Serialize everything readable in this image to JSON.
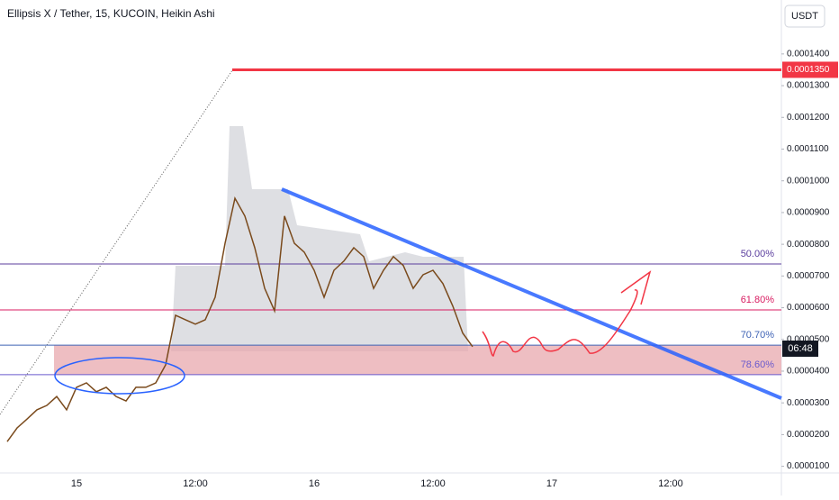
{
  "chart_data": {
    "type": "line",
    "title": "Ellipsis X / Tether, 15, KUCOIN, Heikin Ashi",
    "currency": "USDT",
    "countdown": "06:48",
    "categories": [
      null,
      null,
      null,
      null,
      null,
      null,
      null,
      "15",
      null,
      null,
      null,
      null,
      null,
      null,
      null,
      null,
      null,
      null,
      null,
      "12:00",
      null,
      null,
      null,
      null,
      null,
      null,
      null,
      null,
      null,
      null,
      null,
      "16",
      null,
      null,
      null,
      null,
      null,
      null,
      null,
      null,
      null,
      null,
      null,
      "12:00",
      null,
      null,
      null,
      null,
      null,
      null,
      null,
      null,
      null,
      null,
      null,
      "17",
      null,
      null,
      null,
      null,
      null,
      null,
      null,
      null,
      null,
      null,
      null,
      "12:00",
      null,
      null,
      null,
      null,
      null,
      null,
      null,
      null,
      null,
      null,
      null
    ],
    "series": [
      {
        "color": "#7a4a1c",
        "values": [
          1.78e-05,
          2.21e-05,
          2.49e-05,
          2.78e-05,
          2.92e-05,
          3.2e-05,
          2.78e-05,
          3.49e-05,
          3.63e-05,
          3.35e-05,
          3.49e-05,
          3.2e-05,
          3.06e-05,
          3.49e-05,
          3.49e-05,
          3.63e-05,
          4.2e-05,
          5.76e-05,
          5.62e-05,
          5.48e-05,
          5.62e-05,
          6.33e-05,
          8.03e-05,
          9.45e-05,
          8.89e-05,
          7.89e-05,
          6.61e-05,
          5.9e-05,
          8.89e-05,
          8.03e-05,
          7.75e-05,
          7.18e-05,
          6.33e-05,
          7.18e-05,
          7.47e-05,
          7.89e-05,
          7.61e-05,
          6.61e-05,
          7.18e-05,
          7.61e-05,
          7.33e-05,
          6.61e-05,
          7.04e-05,
          7.18e-05,
          6.76e-05,
          6.05e-05,
          5.2e-05,
          4.77e-05,
          null,
          null,
          null,
          null,
          null,
          null,
          null,
          null,
          null,
          null,
          null,
          null,
          null,
          null,
          null,
          null,
          null,
          null,
          null,
          null,
          null,
          null,
          null,
          null,
          null,
          null,
          null,
          null,
          null,
          null,
          null
        ]
      }
    ],
    "ylim": [
      7.9e-06,
      0.000157
    ],
    "yticks": [
      {
        "value": 0.00014,
        "label": "0.0001400"
      },
      {
        "value": 0.00013,
        "label": "0.0001300"
      },
      {
        "value": 0.00012,
        "label": "0.0001200"
      },
      {
        "value": 0.00011,
        "label": "0.0001100"
      },
      {
        "value": 0.0001,
        "label": "0.0001000"
      },
      {
        "value": 9e-05,
        "label": "0.0000900"
      },
      {
        "value": 8e-05,
        "label": "0.0000800"
      },
      {
        "value": 7e-05,
        "label": "0.0000700"
      },
      {
        "value": 6e-05,
        "label": "0.0000600"
      },
      {
        "value": 5e-05,
        "label": "0.0000500"
      },
      {
        "value": 4e-05,
        "label": "0.0000400"
      },
      {
        "value": 3e-05,
        "label": "0.0000300"
      },
      {
        "value": 2e-05,
        "label": "0.0000200"
      },
      {
        "value": 1e-05,
        "label": "0.0000100"
      }
    ],
    "levels": [
      {
        "value": 0.000135,
        "label": "0.0001350",
        "color": "#f23645"
      },
      {
        "value": 7.38e-05,
        "label": "50.00%",
        "color": "#5b3e9e"
      },
      {
        "value": 5.93e-05,
        "label": "61.80%",
        "color": "#d81b60"
      },
      {
        "value": 4.82e-05,
        "label": "70.70%",
        "color": "#3f63b5"
      },
      {
        "value": 3.89e-05,
        "label": "78.60%",
        "color": "#6a5acd"
      }
    ]
  }
}
